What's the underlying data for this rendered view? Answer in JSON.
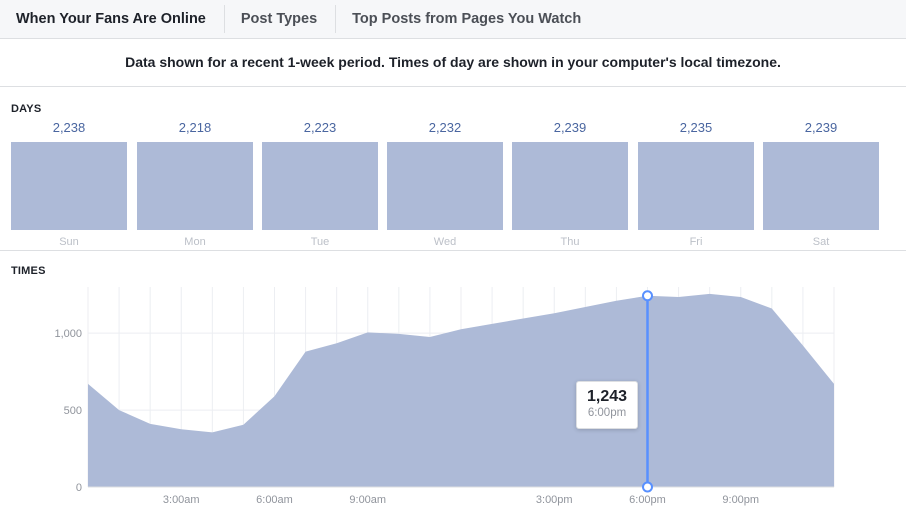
{
  "tabs": [
    {
      "label": "When Your Fans Are Online"
    },
    {
      "label": "Post Types"
    },
    {
      "label": "Top Posts from Pages You Watch"
    }
  ],
  "notice": "Data shown for a recent 1-week period. Times of day are shown in your computer's local timezone.",
  "days": {
    "label": "DAYS",
    "items": [
      {
        "day": "Sun",
        "value": "2,238"
      },
      {
        "day": "Mon",
        "value": "2,218"
      },
      {
        "day": "Tue",
        "value": "2,223"
      },
      {
        "day": "Wed",
        "value": "2,232"
      },
      {
        "day": "Thu",
        "value": "2,239"
      },
      {
        "day": "Fri",
        "value": "2,235"
      },
      {
        "day": "Sat",
        "value": "2,239"
      }
    ]
  },
  "times": {
    "label": "TIMES"
  },
  "tooltip": {
    "value": "1,243",
    "time": "6:00pm"
  },
  "colors": {
    "fill": "#adbad7",
    "accent": "#4a66a0",
    "marker": "#5890ff"
  },
  "chart_data": [
    {
      "type": "bar",
      "title": "DAYS",
      "categories": [
        "Sun",
        "Mon",
        "Tue",
        "Wed",
        "Thu",
        "Fri",
        "Sat"
      ],
      "values": [
        2238,
        2218,
        2223,
        2232,
        2239,
        2235,
        2239
      ]
    },
    {
      "type": "area",
      "title": "TIMES",
      "x": [
        "12:00am",
        "1:00am",
        "2:00am",
        "3:00am",
        "4:00am",
        "5:00am",
        "6:00am",
        "7:00am",
        "8:00am",
        "9:00am",
        "10:00am",
        "11:00am",
        "12:00pm",
        "1:00pm",
        "2:00pm",
        "3:00pm",
        "4:00pm",
        "5:00pm",
        "6:00pm",
        "7:00pm",
        "8:00pm",
        "9:00pm",
        "10:00pm",
        "11:00pm",
        "12:00am"
      ],
      "values": [
        670,
        500,
        410,
        375,
        355,
        405,
        590,
        880,
        935,
        1005,
        995,
        975,
        1025,
        1060,
        1095,
        1130,
        1170,
        1210,
        1243,
        1235,
        1255,
        1235,
        1160,
        920,
        670
      ],
      "x_ticks": [
        "3:00am",
        "6:00am",
        "9:00am",
        "3:00pm",
        "6:00pm",
        "9:00pm"
      ],
      "y_ticks": [
        "0",
        "500",
        "1,000"
      ],
      "ylim": [
        0,
        1300
      ],
      "grid": true,
      "highlight": {
        "x": "6:00pm",
        "value": 1243
      }
    }
  ]
}
